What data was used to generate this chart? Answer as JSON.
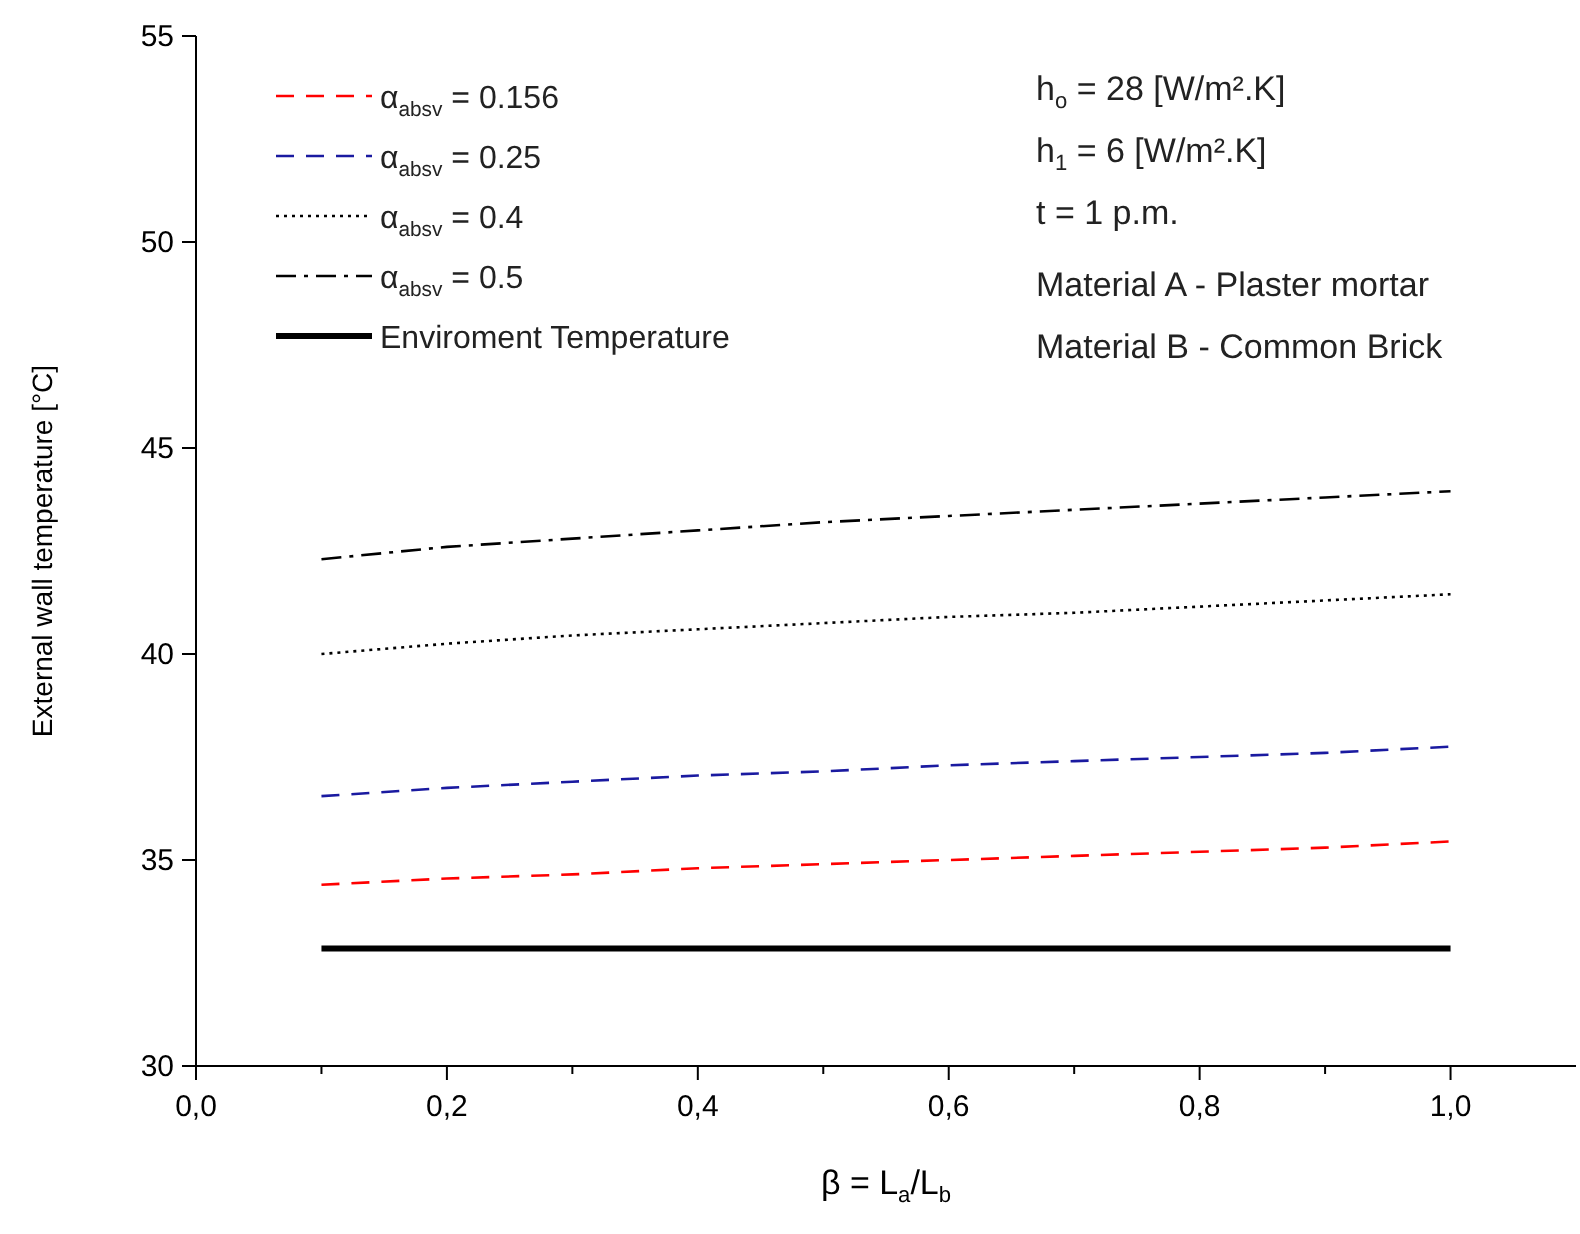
{
  "chart_data": {
    "type": "line",
    "xlabel": "β = L$_{a}$/L$_{b}$",
    "ylabel": "External wall temperature [°C]",
    "x": [
      0.1,
      0.2,
      0.3,
      0.4,
      0.5,
      0.6,
      0.7,
      0.8,
      0.9,
      1.0
    ],
    "xlim": [
      0,
      1.1
    ],
    "ylim": [
      30,
      55
    ],
    "xticks": [
      {
        "value": 0,
        "label": "0,0"
      },
      {
        "value": 0.1,
        "label": null
      },
      {
        "value": 0.2,
        "label": "0,2"
      },
      {
        "value": 0.3,
        "label": null
      },
      {
        "value": 0.4,
        "label": "0,4"
      },
      {
        "value": 0.5,
        "label": null
      },
      {
        "value": 0.6,
        "label": "0,6"
      },
      {
        "value": 0.7,
        "label": null
      },
      {
        "value": 0.8,
        "label": "0,8"
      },
      {
        "value": 0.9,
        "label": null
      },
      {
        "value": 1.0,
        "label": "1,0"
      }
    ],
    "yticks": [
      30,
      35,
      40,
      45,
      50,
      55
    ],
    "legend": "top left",
    "grid": false,
    "marker": "none",
    "series": [
      {
        "name": "α$_{absv}$ = 0.156",
        "color": "#ff0000",
        "line_style": "dashed",
        "values": [
          34.4,
          34.55,
          34.65,
          34.8,
          34.9,
          35.0,
          35.1,
          35.2,
          35.3,
          35.45
        ]
      },
      {
        "name": "α$_{absv}$ = 0.25",
        "color": "#1a1aa0",
        "line_style": "dashed",
        "values": [
          36.55,
          36.75,
          36.9,
          37.05,
          37.15,
          37.3,
          37.4,
          37.5,
          37.6,
          37.75
        ]
      },
      {
        "name": "α$_{absv}$ = 0.4",
        "color": "#000000",
        "line_style": "dotted",
        "values": [
          40.0,
          40.25,
          40.45,
          40.6,
          40.75,
          40.9,
          41.0,
          41.15,
          41.3,
          41.45
        ]
      },
      {
        "name": "α$_{absv}$ = 0.5",
        "color": "#000000",
        "line_style": "dashdot",
        "values": [
          42.3,
          42.6,
          42.8,
          43.0,
          43.2,
          43.35,
          43.5,
          43.65,
          43.8,
          43.95
        ]
      },
      {
        "name": "Enviroment Temperature",
        "color": "#000000",
        "line_style": "solid",
        "values": [
          32.85,
          32.85,
          32.85,
          32.85,
          32.85,
          32.85,
          32.85,
          32.85,
          32.85,
          32.85
        ]
      }
    ],
    "annotations": [
      "h$_{o}$ = 28 [W/m².K]",
      "h$_{1}$ = 6 [W/m².K]",
      "t = 1 p.m.",
      "Material A - Plaster mortar",
      "Material B - Common Brick"
    ]
  }
}
